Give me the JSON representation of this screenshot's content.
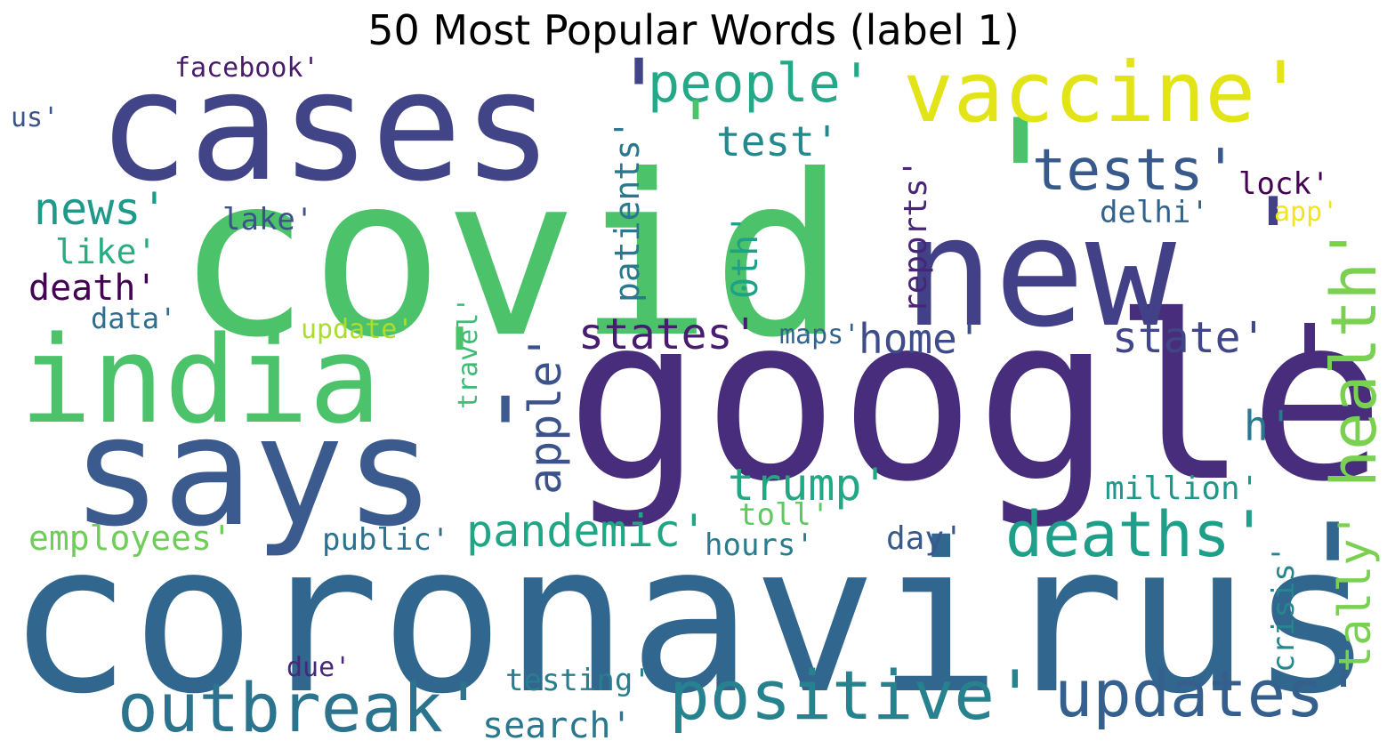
{
  "title": "50 Most Popular Words (label 1)",
  "words": {
    "covid": {
      "text": "covid",
      "color": "#4cc26b"
    },
    "q_covid": {
      "text": "'",
      "color": "#4cc26b"
    },
    "google": {
      "text": "google",
      "color": "#472d7b"
    },
    "q_google": {
      "text": "'",
      "color": "#472d7b"
    },
    "coronavirus": {
      "text": "coronavirus",
      "color": "#31668e"
    },
    "q_coronavirus": {
      "text": "'",
      "color": "#31668e"
    },
    "cases": {
      "text": "cases",
      "color": "#414487"
    },
    "q_cases": {
      "text": "'",
      "color": "#414487"
    },
    "new": {
      "text": "new",
      "color": "#424086"
    },
    "q_new": {
      "text": "'",
      "color": "#424086"
    },
    "says": {
      "text": "says",
      "color": "#3b5a8d"
    },
    "q_says": {
      "text": "'",
      "color": "#3b5a8d"
    },
    "india": {
      "text": "india",
      "color": "#4cc26b"
    },
    "q_india": {
      "text": "'",
      "color": "#4cc26b"
    },
    "vaccine": {
      "text": "vaccine'",
      "color": "#e2e418"
    },
    "people": {
      "text": "people'",
      "color": "#25a887"
    },
    "tests": {
      "text": "tests'",
      "color": "#38598c"
    },
    "test": {
      "text": "test'",
      "color": "#23898e"
    },
    "news": {
      "text": "news'",
      "color": "#1f9a8a"
    },
    "health": {
      "text": "health'",
      "color": "#7ad151"
    },
    "tally": {
      "text": "tally'",
      "color": "#7ad151"
    },
    "states": {
      "text": "states'",
      "color": "#481c6e"
    },
    "home": {
      "text": "home'",
      "color": "#3e4c8a"
    },
    "state": {
      "text": "state'",
      "color": "#404688"
    },
    "outbreak": {
      "text": "outbreak'",
      "color": "#2c738e"
    },
    "positive": {
      "text": "positive'",
      "color": "#26828e"
    },
    "updates": {
      "text": "updates'",
      "color": "#355f8d"
    },
    "deaths": {
      "text": "deaths'",
      "color": "#1f9e89"
    },
    "pandemic": {
      "text": "pandemic'",
      "color": "#21a685"
    },
    "trump": {
      "text": "trump'",
      "color": "#22a884"
    },
    "apple": {
      "text": "apple'",
      "color": "#3b528b"
    },
    "employees": {
      "text": "employees'",
      "color": "#6ece58"
    },
    "facebook": {
      "text": "facebook'",
      "color": "#481a6c"
    },
    "us": {
      "text": "us'",
      "color": "#3b528b"
    },
    "patients": {
      "text": "patients'",
      "color": "#2a788e"
    },
    "oth": {
      "text": "0th'",
      "color": "#1fa187"
    },
    "reports": {
      "text": "reports'",
      "color": "#482576"
    },
    "lock": {
      "text": "lock'",
      "color": "#440154"
    },
    "app": {
      "text": "app'",
      "color": "#f1e51d"
    },
    "delhi": {
      "text": "delhi'",
      "color": "#33638d"
    },
    "lake": {
      "text": "lake'",
      "color": "#3b528b"
    },
    "like": {
      "text": "like'",
      "color": "#27ad81"
    },
    "death": {
      "text": "death'",
      "color": "#440154"
    },
    "data": {
      "text": "data'",
      "color": "#2e6f8e"
    },
    "update": {
      "text": "update'",
      "color": "#addc30"
    },
    "travel": {
      "text": "travel'",
      "color": "#3dbc74"
    },
    "maps": {
      "text": "maps'",
      "color": "#33638d"
    },
    "h": {
      "text": "h'",
      "color": "#2a788e"
    },
    "million": {
      "text": "million'",
      "color": "#1f988b"
    },
    "toll": {
      "text": "toll'",
      "color": "#5ec962"
    },
    "day": {
      "text": "day'",
      "color": "#38598c"
    },
    "public": {
      "text": "public'",
      "color": "#2c728e"
    },
    "hours": {
      "text": "hours'",
      "color": "#287c8e"
    },
    "crisis": {
      "text": "crisis'",
      "color": "#24868e"
    },
    "due": {
      "text": "due'",
      "color": "#482878"
    },
    "testing": {
      "text": "testing'",
      "color": "#287d8e"
    },
    "search": {
      "text": "search'",
      "color": "#2a788e"
    }
  }
}
